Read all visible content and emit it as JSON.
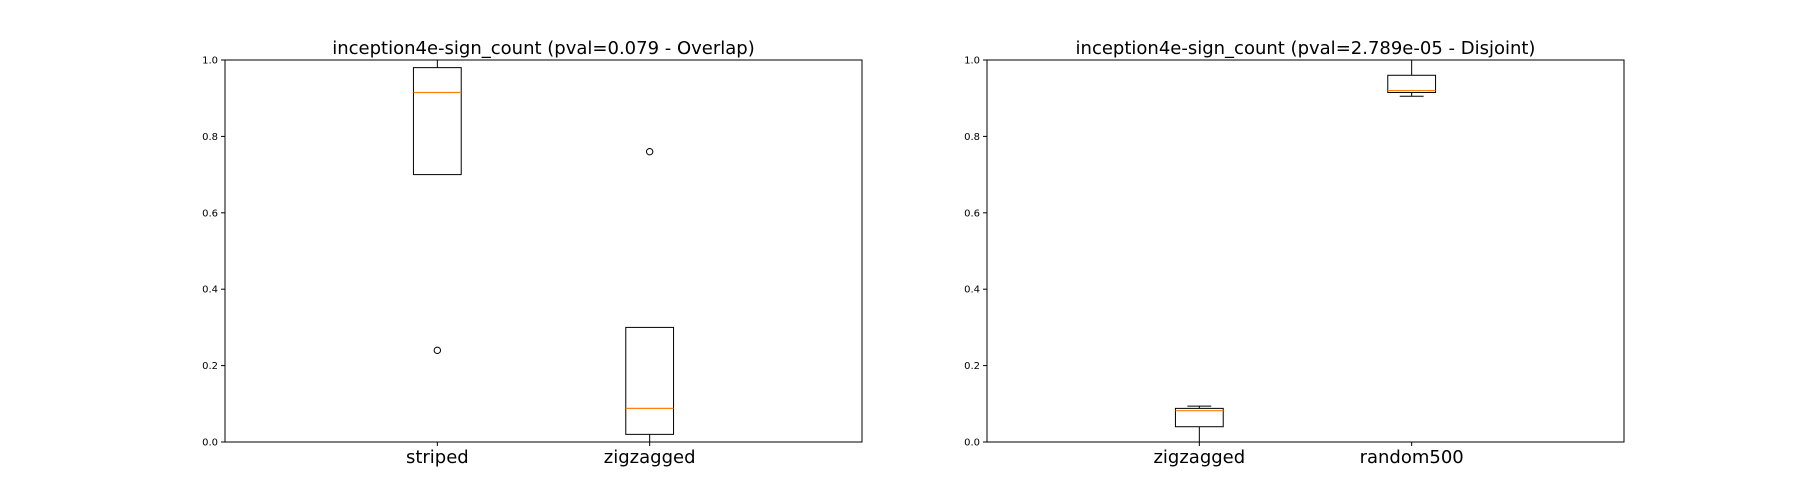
{
  "chart_data": [
    {
      "type": "box",
      "title": "inception4e-sign_count (pval=0.079 - Overlap)",
      "xlabel": "",
      "ylabel": "",
      "ylim": [
        0,
        1.0
      ],
      "yticks": [
        "0.0",
        "0.2",
        "0.4",
        "0.6",
        "0.8",
        "1.0"
      ],
      "grid": false,
      "categories": [
        "striped",
        "zigzagged"
      ],
      "boxes": [
        {
          "category": "striped",
          "whisker_low": 0.7,
          "q1": 0.7,
          "median": 0.915,
          "q3": 0.98,
          "whisker_high": 1.0,
          "outliers": [
            0.24
          ]
        },
        {
          "category": "zigzagged",
          "whisker_low": 0.0,
          "q1": 0.02,
          "median": 0.088,
          "q3": 0.3,
          "whisker_high": 0.3,
          "outliers": [
            0.76
          ]
        }
      ]
    },
    {
      "type": "box",
      "title": "inception4e-sign_count (pval=2.789e-05 - Disjoint)",
      "xlabel": "",
      "ylabel": "",
      "ylim": [
        0,
        1.0
      ],
      "yticks": [
        "0.0",
        "0.2",
        "0.4",
        "0.6",
        "0.8",
        "1.0"
      ],
      "grid": false,
      "categories": [
        "zigzagged",
        "random500"
      ],
      "boxes": [
        {
          "category": "zigzagged",
          "whisker_low": 0.0,
          "q1": 0.04,
          "median": 0.082,
          "q3": 0.088,
          "whisker_high": 0.094,
          "outliers": []
        },
        {
          "category": "random500",
          "whisker_low": 0.905,
          "q1": 0.915,
          "median": 0.92,
          "q3": 0.96,
          "whisker_high": 1.0,
          "outliers": []
        }
      ]
    }
  ],
  "colors": {
    "box": "#000000",
    "median": "#ff7f0e",
    "axis": "#000000"
  }
}
